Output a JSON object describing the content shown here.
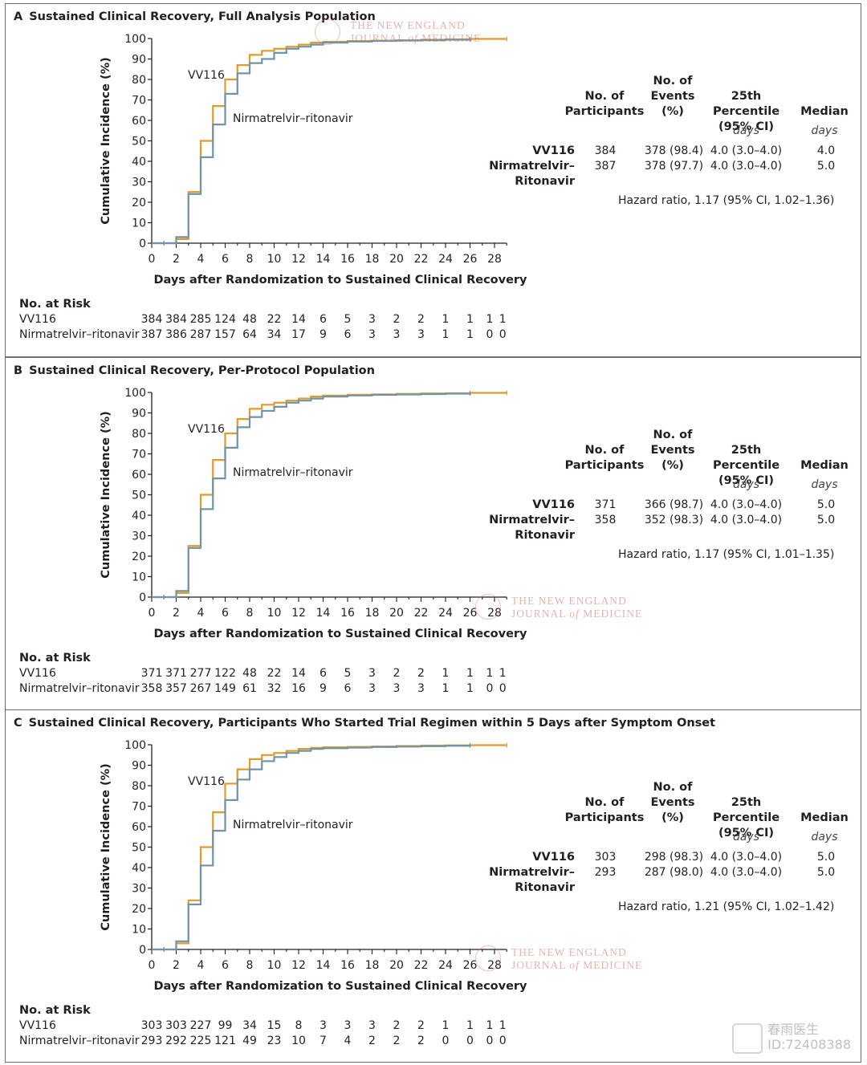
{
  "brand": {
    "line1": "春雨医生",
    "line2": "ID:72408388"
  },
  "watermark": {
    "line1": "THE NEW ENGLAND",
    "line2a": "JOURNAL",
    "line2b": "of",
    "line2c": "MEDICINE"
  },
  "common": {
    "y_axis_label": "Cumulative Incidence (%)",
    "x_axis_label": "Days after Randomization to Sustained Clinical Recovery",
    "vv116_label": "VV116",
    "nirm_label": "Nirmatrelvir–ritonavir",
    "risk_title": "No. at Risk",
    "risk_row1": "VV116",
    "risk_row2": "Nirmatrelvir–ritonavir",
    "hdr_participants": "No. of\nParticipants",
    "hdr_events": "No. of\nEvents\n(%)",
    "hdr_percentile": "25th Percentile\n(95% CI)",
    "hdr_median": "Median",
    "unit_days": "days",
    "grp_vv116": "VV116",
    "grp_nirm": "Nirmatrelvir–\nRitonavir",
    "colors": {
      "vv116": "#E09B2D",
      "nirm": "#6F94AA",
      "axis": "#231F20"
    }
  },
  "chart_data": [
    {
      "type": "line",
      "letter": "A",
      "title": "Sustained Clinical Recovery, Full Analysis Population",
      "xlabel": "Days after Randomization to Sustained Clinical Recovery",
      "ylabel": "Cumulative Incidence (%)",
      "xlim": [
        0,
        29
      ],
      "ylim": [
        0,
        100
      ],
      "xticks": [
        "0",
        "2",
        "4",
        "6",
        "8",
        "10",
        "12",
        "14",
        "16",
        "18",
        "20",
        "22",
        "24",
        "26",
        "28"
      ],
      "yticks": [
        "0",
        "10",
        "20",
        "30",
        "40",
        "50",
        "60",
        "70",
        "80",
        "90",
        "100"
      ],
      "series": [
        {
          "name": "VV116",
          "x": [
            0,
            1,
            2,
            3,
            4,
            5,
            6,
            7,
            8,
            9,
            10,
            11,
            12,
            13,
            14,
            16,
            18,
            20,
            22,
            24,
            26,
            29
          ],
          "y": [
            0,
            0,
            2,
            25,
            50,
            67,
            80,
            87,
            92,
            94,
            95,
            96,
            97,
            98,
            98.4,
            98.8,
            99,
            99.2,
            99.4,
            99.6,
            99.8,
            99.8
          ]
        },
        {
          "name": "Nirmatrelvir–ritonavir",
          "x": [
            0,
            1,
            2,
            3,
            4,
            5,
            6,
            7,
            8,
            9,
            10,
            11,
            12,
            13,
            14,
            16,
            18,
            20,
            22,
            24,
            26
          ],
          "y": [
            0,
            0,
            3,
            24,
            42,
            58,
            73,
            83,
            88,
            90,
            93,
            95,
            96,
            97,
            98,
            98.5,
            98.8,
            99,
            99.2,
            99.4,
            99.6
          ]
        }
      ],
      "stats": {
        "vv116": {
          "participants": "384",
          "events": "378 (98.4)",
          "percentile": "4.0 (3.0–4.0)",
          "median": "4.0"
        },
        "nirm": {
          "participants": "387",
          "events": "378 (97.7)",
          "percentile": "4.0 (3.0–4.0)",
          "median": "5.0"
        },
        "hazard": "Hazard ratio, 1.17 (95% CI, 1.02–1.36)"
      },
      "risk": {
        "vv116": [
          "384",
          "384",
          "285",
          "124",
          "48",
          "22",
          "14",
          "6",
          "5",
          "3",
          "2",
          "2",
          "1",
          "1",
          "1",
          "1"
        ],
        "nirm": [
          "387",
          "386",
          "287",
          "157",
          "64",
          "34",
          "17",
          "9",
          "6",
          "3",
          "3",
          "3",
          "1",
          "1",
          "0",
          "0"
        ]
      }
    },
    {
      "type": "line",
      "letter": "B",
      "title": "Sustained Clinical Recovery, Per-Protocol Population",
      "xlabel": "Days after Randomization to Sustained Clinical Recovery",
      "ylabel": "Cumulative Incidence (%)",
      "xlim": [
        0,
        29
      ],
      "ylim": [
        0,
        100
      ],
      "xticks": [
        "0",
        "2",
        "4",
        "6",
        "8",
        "10",
        "12",
        "14",
        "16",
        "18",
        "20",
        "22",
        "24",
        "26",
        "28"
      ],
      "yticks": [
        "0",
        "10",
        "20",
        "30",
        "40",
        "50",
        "60",
        "70",
        "80",
        "90",
        "100"
      ],
      "series": [
        {
          "name": "VV116",
          "x": [
            0,
            1,
            2,
            3,
            4,
            5,
            6,
            7,
            8,
            9,
            10,
            11,
            12,
            13,
            14,
            16,
            18,
            20,
            22,
            24,
            26,
            29
          ],
          "y": [
            0,
            0,
            2,
            25,
            50,
            67,
            80,
            87,
            92,
            94,
            95,
            96,
            97,
            98,
            98.5,
            98.9,
            99.1,
            99.3,
            99.5,
            99.6,
            99.8,
            99.8
          ]
        },
        {
          "name": "Nirmatrelvir–ritonavir",
          "x": [
            0,
            1,
            2,
            3,
            4,
            5,
            6,
            7,
            8,
            9,
            10,
            11,
            12,
            13,
            14,
            16,
            18,
            20,
            22,
            24,
            26
          ],
          "y": [
            0,
            0,
            3,
            24,
            43,
            58,
            73,
            83,
            88,
            91,
            93,
            95,
            96,
            97,
            98,
            98.5,
            98.8,
            99,
            99.2,
            99.4,
            99.6
          ]
        }
      ],
      "stats": {
        "vv116": {
          "participants": "371",
          "events": "366 (98.7)",
          "percentile": "4.0 (3.0–4.0)",
          "median": "5.0"
        },
        "nirm": {
          "participants": "358",
          "events": "352 (98.3)",
          "percentile": "4.0 (3.0–4.0)",
          "median": "5.0"
        },
        "hazard": "Hazard ratio, 1.17 (95% CI, 1.01–1.35)"
      },
      "risk": {
        "vv116": [
          "371",
          "371",
          "277",
          "122",
          "48",
          "22",
          "14",
          "6",
          "5",
          "3",
          "2",
          "2",
          "1",
          "1",
          "1",
          "1"
        ],
        "nirm": [
          "358",
          "357",
          "267",
          "149",
          "61",
          "32",
          "16",
          "9",
          "6",
          "3",
          "3",
          "3",
          "1",
          "1",
          "0",
          "0"
        ]
      }
    },
    {
      "type": "line",
      "letter": "C",
      "title": "Sustained Clinical Recovery, Participants Who Started Trial Regimen within 5 Days after Symptom Onset",
      "xlabel": "Days after Randomization to Sustained Clinical Recovery",
      "ylabel": "Cumulative Incidence (%)",
      "xlim": [
        0,
        29
      ],
      "ylim": [
        0,
        100
      ],
      "xticks": [
        "0",
        "2",
        "4",
        "6",
        "8",
        "10",
        "12",
        "14",
        "16",
        "18",
        "20",
        "22",
        "24",
        "26",
        "28"
      ],
      "yticks": [
        "0",
        "10",
        "20",
        "30",
        "40",
        "50",
        "60",
        "70",
        "80",
        "90",
        "100"
      ],
      "series": [
        {
          "name": "VV116",
          "x": [
            0,
            1,
            2,
            3,
            4,
            5,
            6,
            7,
            8,
            9,
            10,
            11,
            12,
            13,
            14,
            16,
            18,
            20,
            22,
            24,
            26,
            29
          ],
          "y": [
            0,
            0,
            3,
            24,
            50,
            67,
            81,
            88,
            93,
            95,
            96,
            97,
            98,
            98.5,
            98.8,
            99,
            99.2,
            99.4,
            99.6,
            99.7,
            99.8,
            99.8
          ]
        },
        {
          "name": "Nirmatrelvir–ritonavir",
          "x": [
            0,
            1,
            2,
            3,
            4,
            5,
            6,
            7,
            8,
            9,
            10,
            11,
            12,
            13,
            14,
            16,
            18,
            20,
            22,
            24,
            26
          ],
          "y": [
            0,
            0,
            4,
            22,
            41,
            58,
            73,
            83,
            88,
            92,
            94,
            96,
            97,
            98,
            98.3,
            98.6,
            98.9,
            99.1,
            99.3,
            99.5,
            99.7
          ]
        }
      ],
      "stats": {
        "vv116": {
          "participants": "303",
          "events": "298 (98.3)",
          "percentile": "4.0 (3.0–4.0)",
          "median": "5.0"
        },
        "nirm": {
          "participants": "293",
          "events": "287 (98.0)",
          "percentile": "4.0 (3.0–4.0)",
          "median": "5.0"
        },
        "hazard": "Hazard ratio, 1.21 (95% CI, 1.02–1.42)"
      },
      "risk": {
        "vv116": [
          "303",
          "303",
          "227",
          "99",
          "34",
          "15",
          "8",
          "3",
          "3",
          "3",
          "2",
          "2",
          "1",
          "1",
          "1",
          "1"
        ],
        "nirm": [
          "293",
          "292",
          "225",
          "121",
          "49",
          "23",
          "10",
          "7",
          "4",
          "2",
          "2",
          "2",
          "0",
          "0",
          "0",
          "0"
        ]
      }
    }
  ]
}
